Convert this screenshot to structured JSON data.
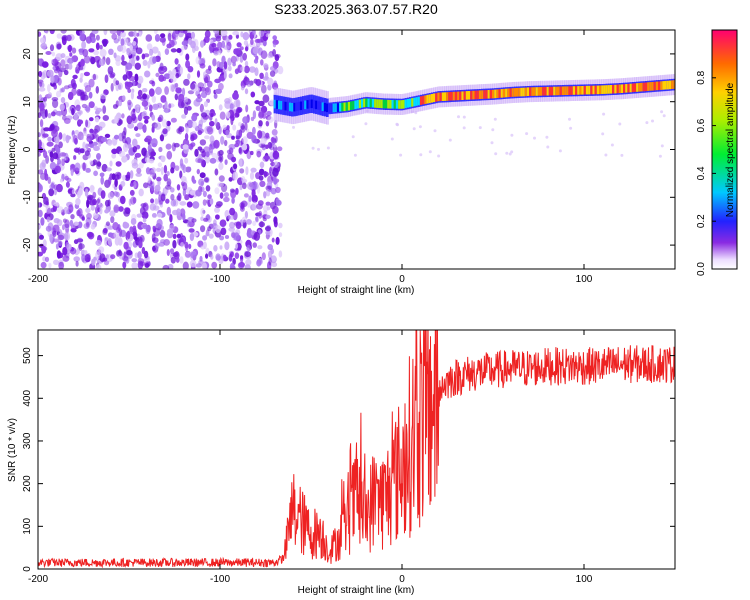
{
  "title": "S233.2025.363.07.57.R20",
  "chart_data": [
    {
      "type": "heatmap",
      "xlabel": "Height of straight line (km)",
      "ylabel": "Frequency (Hz)",
      "xlim": [
        -200,
        150
      ],
      "ylim": [
        -25,
        25
      ],
      "x_ticks": [
        -200,
        -100,
        0,
        100
      ],
      "y_ticks": [
        -20,
        -10,
        0,
        10,
        20
      ],
      "noise_region_x": [
        -200,
        -70
      ],
      "signal_track": {
        "x": [
          -70,
          -60,
          -50,
          -40,
          -30,
          -20,
          -10,
          0,
          10,
          20,
          30,
          40,
          50,
          60,
          70,
          80,
          90,
          100,
          110,
          120,
          130,
          140,
          150
        ],
        "frequency": [
          9.5,
          8.8,
          9.6,
          8.6,
          9.0,
          9.8,
          9.5,
          9.4,
          10.2,
          11.0,
          11.2,
          11.4,
          11.6,
          11.9,
          12.1,
          12.2,
          12.3,
          12.4,
          12.5,
          12.7,
          13.0,
          13.3,
          13.6
        ]
      },
      "colorbar": {
        "label": "Normalized spectral amplitude",
        "range": [
          0,
          1
        ],
        "ticks": [
          "0.0",
          "0.2",
          "0.4",
          "0.6",
          "0.8"
        ]
      }
    },
    {
      "type": "line",
      "xlabel": "Height of straight line (km)",
      "ylabel": "SNR (10 * v/v)",
      "xlim": [
        -200,
        150
      ],
      "ylim": [
        0,
        560
      ],
      "x_ticks": [
        -200,
        -100,
        0,
        100
      ],
      "y_ticks": [
        0,
        100,
        200,
        300,
        400,
        500
      ],
      "line_color": "#ee2222",
      "series": [
        {
          "name": "SNR",
          "x": [
            -200,
            -150,
            -100,
            -70,
            -65,
            -60,
            -55,
            -50,
            -45,
            -40,
            -35,
            -30,
            -25,
            -20,
            -15,
            -10,
            -5,
            0,
            5,
            10,
            15,
            20,
            25,
            30,
            40,
            50,
            60,
            70,
            80,
            90,
            100,
            110,
            120,
            130,
            140,
            150
          ],
          "y": [
            15,
            15,
            15,
            15,
            25,
            140,
            110,
            80,
            90,
            40,
            70,
            110,
            170,
            120,
            170,
            160,
            200,
            240,
            300,
            350,
            380,
            420,
            440,
            450,
            460,
            465,
            470,
            470,
            475,
            475,
            475,
            475,
            480,
            480,
            480,
            480
          ]
        }
      ]
    }
  ]
}
